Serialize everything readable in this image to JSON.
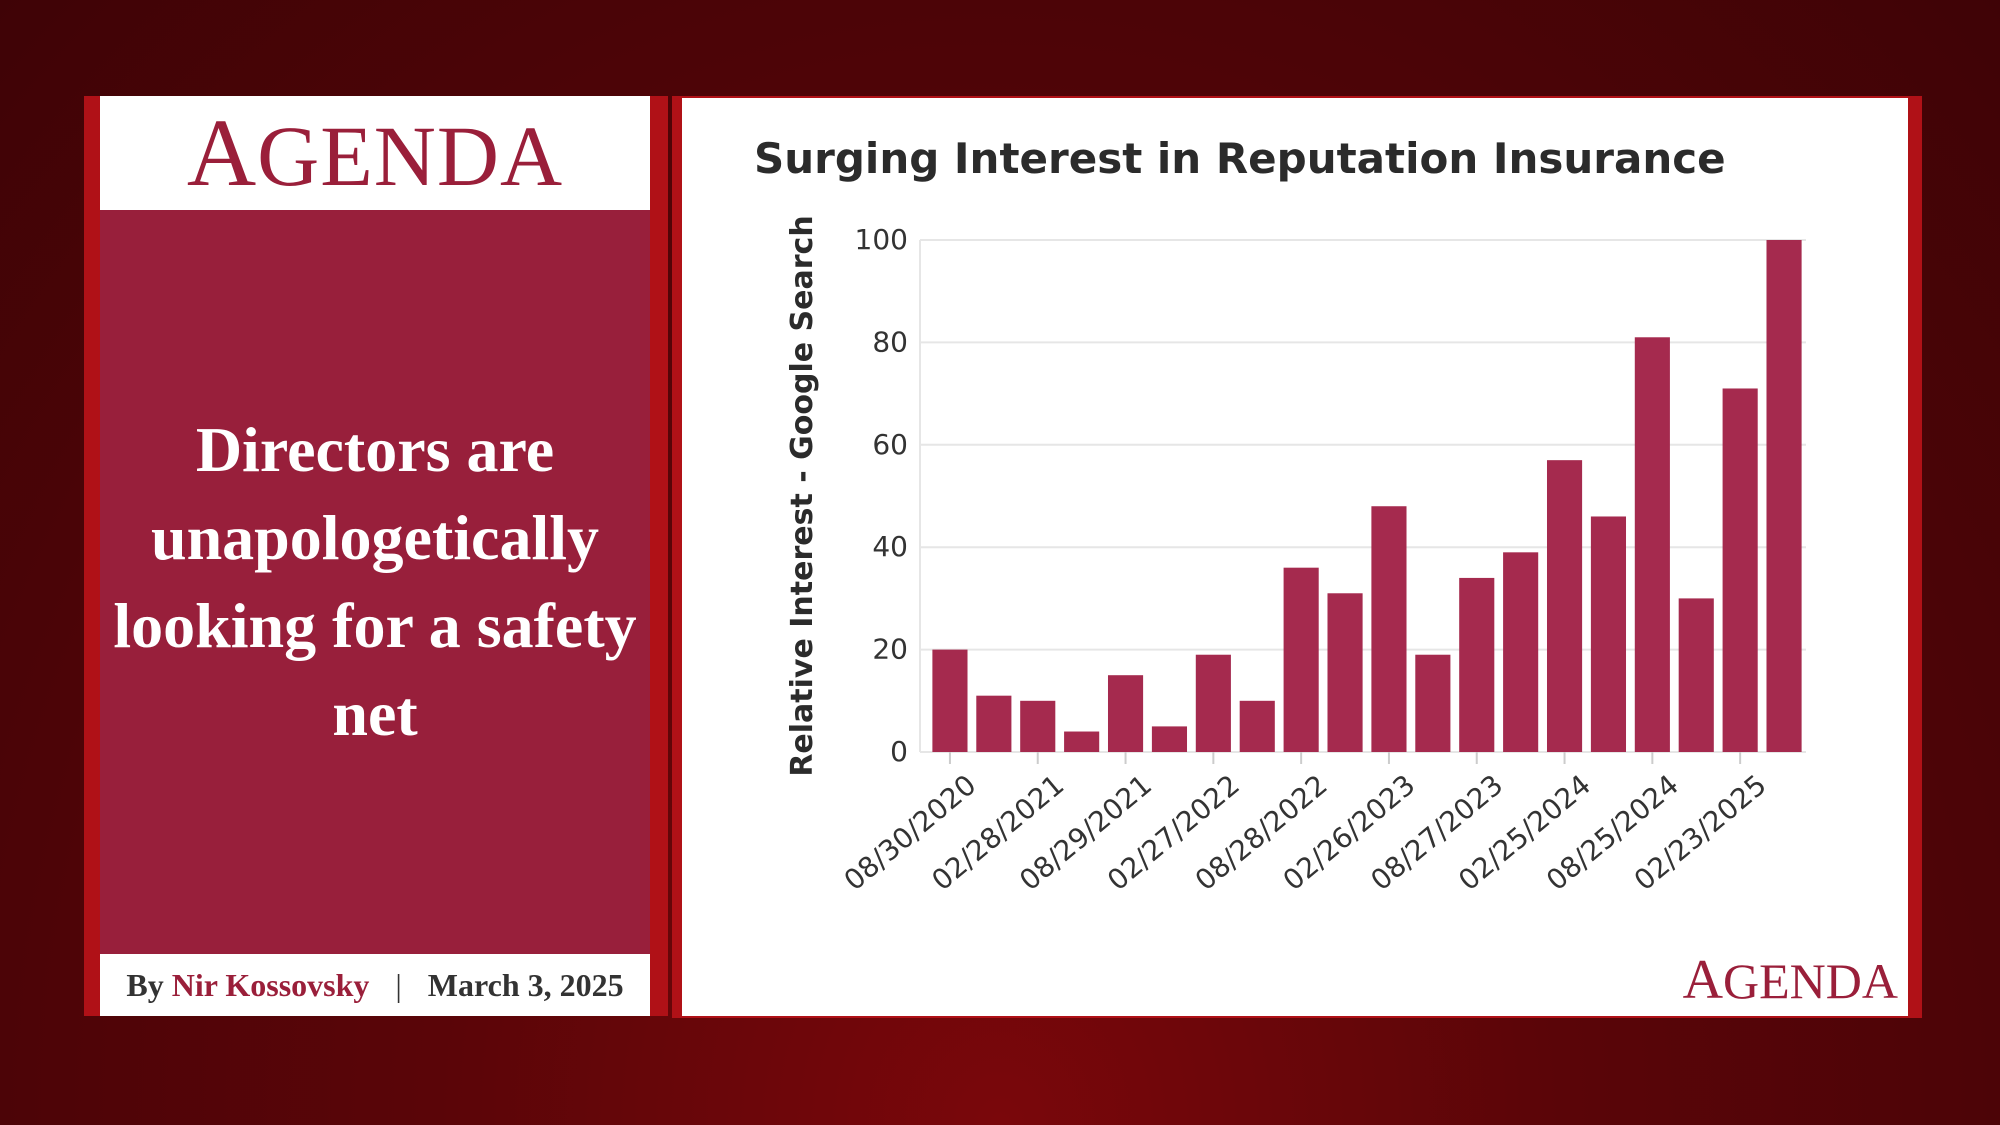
{
  "panel": {
    "logo_cap": "A",
    "logo_rest": "GENDA",
    "headline": "Directors are unapologetically looking for a safety net",
    "byline": {
      "by": "By",
      "author": "Nir Kossovsky",
      "separator": "|",
      "date": "March 3, 2025"
    }
  },
  "chart_logo_cap": "A",
  "chart_logo_rest": "GENDA",
  "colors": {
    "bar": "#a52a4e",
    "brand": "#9a1f3a",
    "frame": "#b01117",
    "headline_bg": "#981f3b"
  },
  "chart_data": {
    "type": "bar",
    "title": "Surging Interest in Reputation Insurance",
    "xlabel": "",
    "ylabel": "Relative Interest - Google Search",
    "ylim": [
      0,
      100
    ],
    "yticks": [
      0,
      20,
      40,
      60,
      80,
      100
    ],
    "grid": true,
    "categories": [
      "08/30/2020",
      "",
      "02/28/2021",
      "",
      "08/29/2021",
      "",
      "02/27/2022",
      "",
      "08/28/2022",
      "",
      "02/26/2023",
      "",
      "08/27/2023",
      "",
      "02/25/2024",
      "",
      "08/25/2024",
      "",
      "02/23/2025",
      ""
    ],
    "values": [
      20,
      11,
      10,
      4,
      15,
      5,
      19,
      10,
      36,
      31,
      48,
      19,
      34,
      39,
      57,
      46,
      81,
      30,
      71,
      100
    ],
    "xtick_labels": [
      "08/30/2020",
      "02/28/2021",
      "08/29/2021",
      "02/27/2022",
      "08/28/2022",
      "02/26/2023",
      "08/27/2023",
      "02/25/2024",
      "08/25/2024",
      "02/23/2025"
    ]
  }
}
